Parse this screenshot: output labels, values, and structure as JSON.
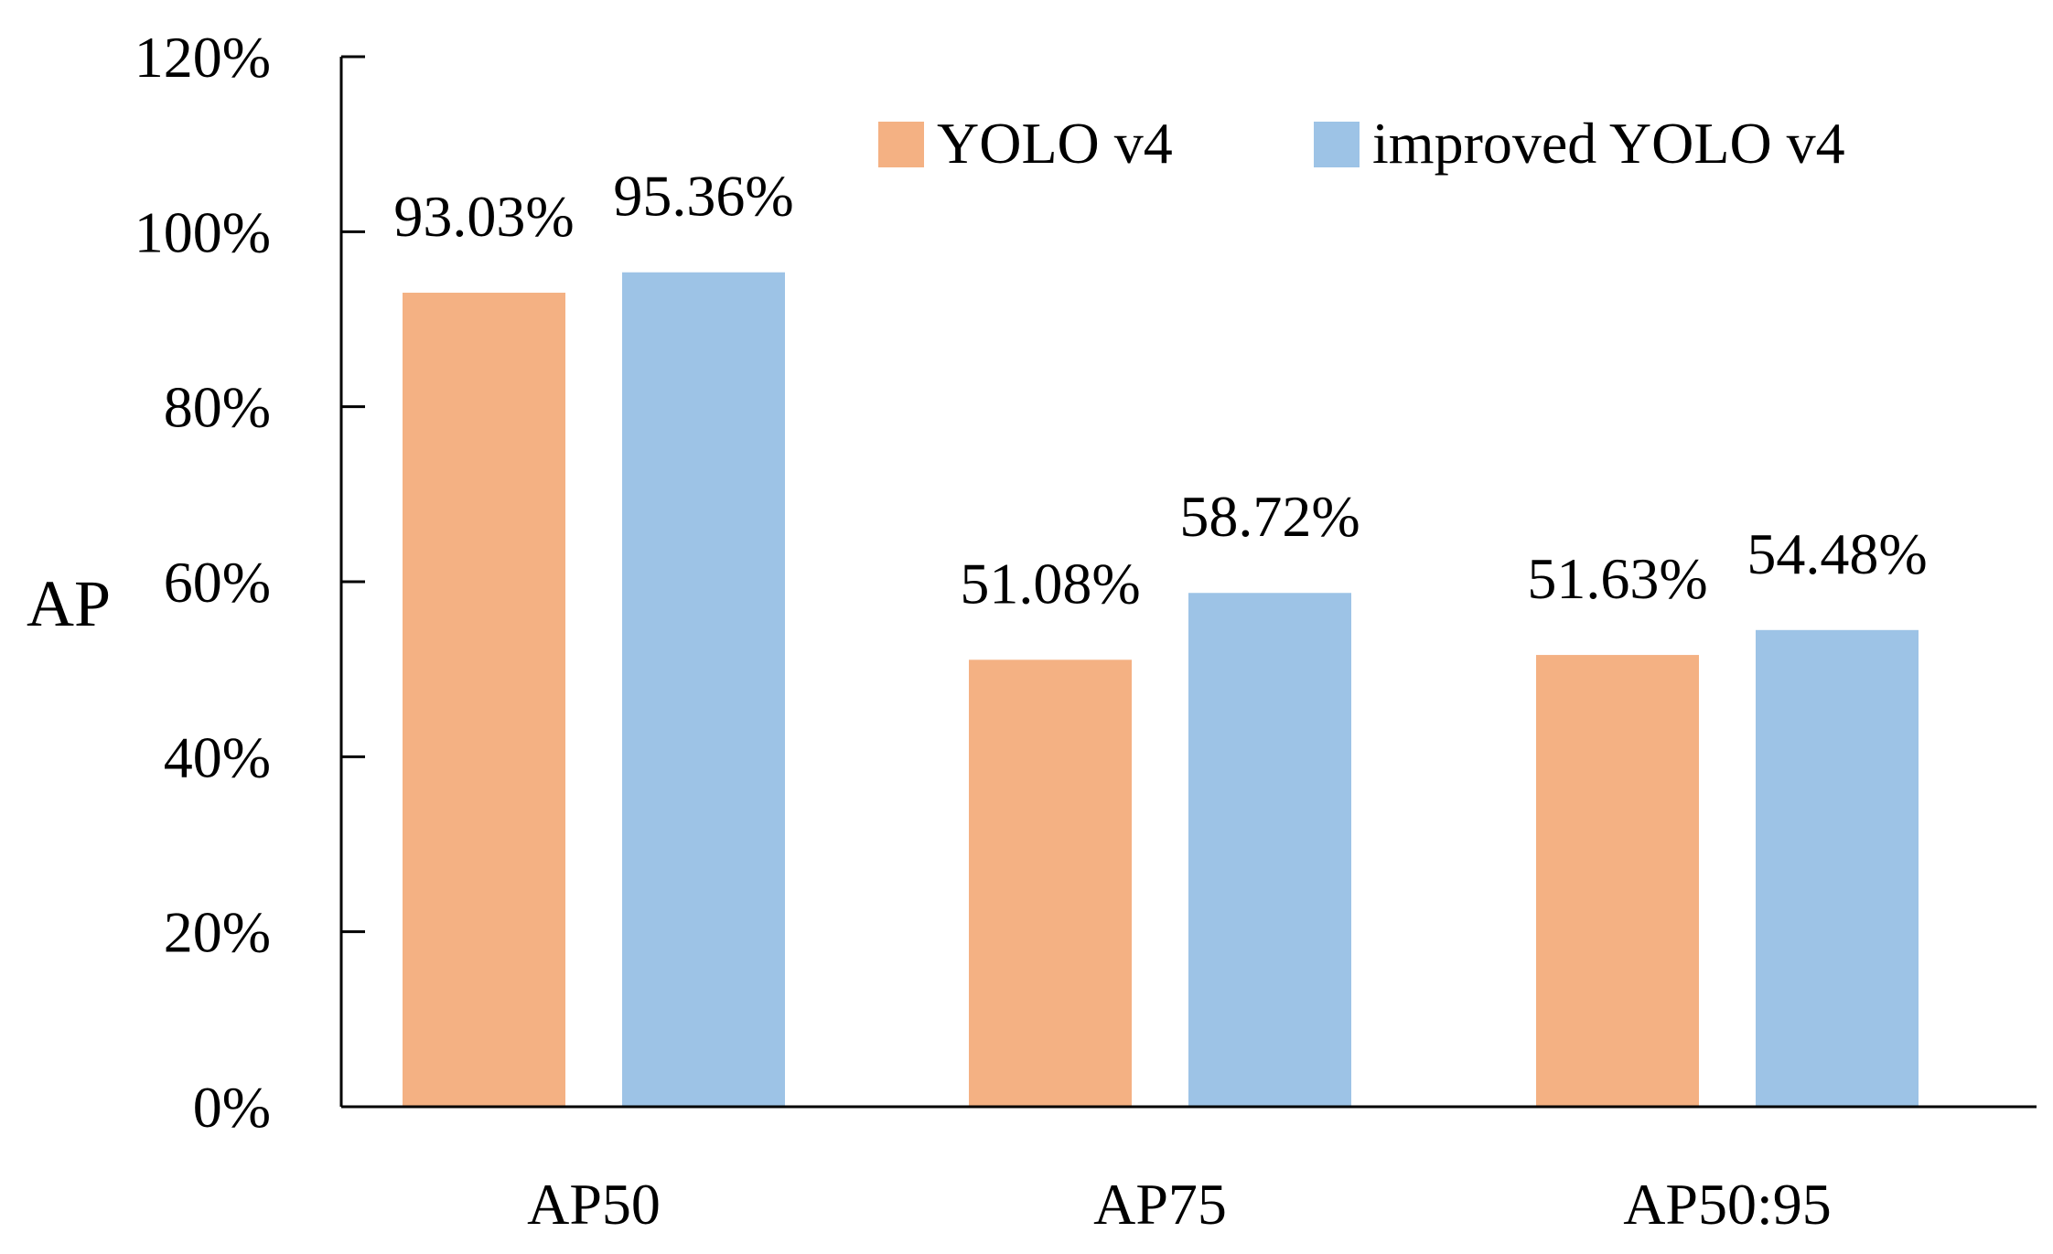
{
  "chart_data": {
    "type": "bar",
    "title": "",
    "xlabel": "",
    "ylabel": "AP",
    "categories": [
      "AP50",
      "AP75",
      "AP50:95"
    ],
    "series": [
      {
        "name": "YOLO v4",
        "color": "#f4b183",
        "values": [
          93.03,
          51.08,
          51.63
        ],
        "labels": [
          "93.03%",
          "51.08%",
          "51.63%"
        ]
      },
      {
        "name": "improved YOLO v4",
        "color": "#9dc3e6",
        "values": [
          95.36,
          58.72,
          54.48
        ],
        "labels": [
          "95.36%",
          "58.72%",
          "54.48%"
        ]
      }
    ],
    "ylim": [
      0,
      120
    ],
    "yticks": [
      0,
      20,
      40,
      60,
      80,
      100,
      120
    ],
    "ytick_labels": [
      "0%",
      "20%",
      "40%",
      "60%",
      "80%",
      "100%",
      "120%"
    ],
    "grid": false,
    "legend_position": "top-right"
  }
}
